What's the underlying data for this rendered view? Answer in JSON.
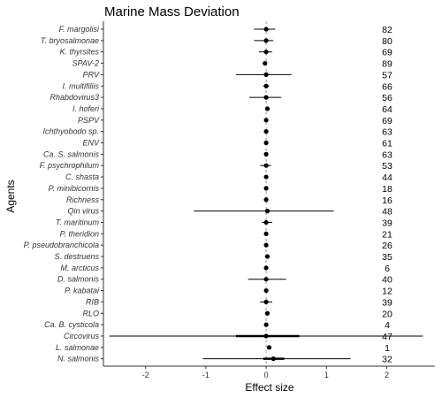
{
  "chart_data": {
    "type": "forest",
    "title": "Marine Mass Deviation",
    "xlabel": "Effect size",
    "ylabel": "Agents",
    "xlim": [
      -2.7,
      2.8
    ],
    "xticks": [
      "-2",
      "-1",
      "0",
      "1",
      "2"
    ],
    "xtick_values": [
      -2,
      -1,
      0,
      1,
      2
    ],
    "reference_line": 0,
    "grid": false,
    "rows": [
      {
        "agent": "F. margolisi",
        "estimate": 0.0,
        "lower": -0.2,
        "upper": 0.15,
        "n": "82"
      },
      {
        "agent": "T. bryosalmonae",
        "estimate": 0.0,
        "lower": -0.2,
        "upper": 0.12,
        "n": "80"
      },
      {
        "agent": "K. thyrsites",
        "estimate": 0.0,
        "lower": -0.12,
        "upper": 0.1,
        "n": "69"
      },
      {
        "agent": "SPAV-2",
        "estimate": -0.02,
        "lower": -0.05,
        "upper": 0.01,
        "n": "89"
      },
      {
        "agent": "PRV",
        "estimate": 0.0,
        "lower": -0.5,
        "upper": 0.42,
        "n": "57"
      },
      {
        "agent": "I. multifiliis",
        "estimate": 0.0,
        "lower": -0.05,
        "upper": 0.05,
        "n": "66"
      },
      {
        "agent": "Rhabdovirus3",
        "estimate": 0.0,
        "lower": -0.28,
        "upper": 0.25,
        "n": "56"
      },
      {
        "agent": "I. hoferi",
        "estimate": 0.02,
        "lower": -0.02,
        "upper": 0.06,
        "n": "64"
      },
      {
        "agent": "PSPV",
        "estimate": 0.0,
        "lower": -0.03,
        "upper": 0.03,
        "n": "69"
      },
      {
        "agent": "Ichthyobodo sp.",
        "estimate": 0.0,
        "lower": -0.02,
        "upper": 0.02,
        "n": "63"
      },
      {
        "agent": "ENV",
        "estimate": 0.0,
        "lower": -0.02,
        "upper": 0.02,
        "n": "61"
      },
      {
        "agent": "Ca. S. salmonis",
        "estimate": 0.0,
        "lower": -0.02,
        "upper": 0.02,
        "n": "63"
      },
      {
        "agent": "F. psychrophilum",
        "estimate": 0.0,
        "lower": -0.1,
        "upper": 0.08,
        "n": "53"
      },
      {
        "agent": "C. shasta",
        "estimate": 0.0,
        "lower": -0.02,
        "upper": 0.02,
        "n": "44"
      },
      {
        "agent": "P. minibicornis",
        "estimate": 0.0,
        "lower": -0.02,
        "upper": 0.02,
        "n": "18"
      },
      {
        "agent": "Richness",
        "estimate": 0.0,
        "lower": -0.01,
        "upper": 0.01,
        "n": "16"
      },
      {
        "agent": "Qin virus",
        "estimate": 0.02,
        "lower": -1.2,
        "upper": 1.12,
        "n": "48"
      },
      {
        "agent": "T. maritinum",
        "estimate": 0.0,
        "lower": -0.07,
        "upper": 0.1,
        "n": "39"
      },
      {
        "agent": "P. theridion",
        "estimate": 0.0,
        "lower": -0.02,
        "upper": 0.02,
        "n": "21"
      },
      {
        "agent": "P. pseudobranchicola",
        "estimate": 0.0,
        "lower": -0.02,
        "upper": 0.02,
        "n": "26"
      },
      {
        "agent": "S. destruens",
        "estimate": 0.02,
        "lower": -0.02,
        "upper": 0.06,
        "n": "35"
      },
      {
        "agent": "M. arcticus",
        "estimate": 0.0,
        "lower": -0.02,
        "upper": 0.02,
        "n": "6"
      },
      {
        "agent": "D. salmonis",
        "estimate": 0.0,
        "lower": -0.3,
        "upper": 0.33,
        "n": "40"
      },
      {
        "agent": "P. kabatai",
        "estimate": 0.0,
        "lower": -0.02,
        "upper": 0.02,
        "n": "12"
      },
      {
        "agent": "RIB",
        "estimate": 0.0,
        "lower": -0.1,
        "upper": 0.1,
        "n": "39"
      },
      {
        "agent": "RLO",
        "estimate": 0.02,
        "lower": -0.02,
        "upper": 0.06,
        "n": "20"
      },
      {
        "agent": "Ca. B. cysticola",
        "estimate": 0.0,
        "lower": -0.01,
        "upper": 0.01,
        "n": "4"
      },
      {
        "agent": "Circovirus",
        "estimate": 0.0,
        "lower": -2.6,
        "upper": 2.6,
        "n": "47",
        "inner_lower": -0.5,
        "inner_upper": 0.55
      },
      {
        "agent": "L. salmonae",
        "estimate": 0.05,
        "lower": 0.03,
        "upper": 0.07,
        "n": "1"
      },
      {
        "agent": "N. salmonis",
        "estimate": 0.12,
        "lower": -1.05,
        "upper": 1.4,
        "n": "32",
        "inner_lower": -0.05,
        "inner_upper": 0.3
      }
    ]
  },
  "colors": {
    "axis": "#333333",
    "point": "#000000",
    "interval": "#000000",
    "reference_line": "#999999"
  }
}
